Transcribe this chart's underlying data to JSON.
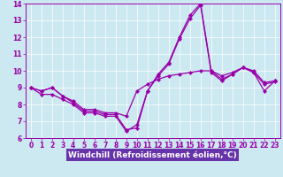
{
  "background_color": "#cce8f0",
  "plot_bg_color": "#cce8f0",
  "line_color": "#9900aa",
  "xlabel": "Windchill (Refroidissement éolien,°C)",
  "xlabel_fontsize": 6.5,
  "tick_fontsize": 5.5,
  "xlim": [
    -0.5,
    23.5
  ],
  "ylim": [
    6,
    14
  ],
  "xticks": [
    0,
    1,
    2,
    3,
    4,
    5,
    6,
    7,
    8,
    9,
    10,
    11,
    12,
    13,
    14,
    15,
    16,
    17,
    18,
    19,
    20,
    21,
    22,
    23
  ],
  "yticks": [
    6,
    7,
    8,
    9,
    10,
    11,
    12,
    13,
    14
  ],
  "xaxis_bg": "#6633aa",
  "series1_x": [
    0,
    1,
    2,
    3,
    4,
    5,
    6,
    7,
    8,
    9,
    10,
    11,
    12,
    13,
    14,
    15,
    16,
    17,
    18,
    19,
    20,
    21,
    22,
    23
  ],
  "series1_y": [
    9.0,
    8.8,
    9.0,
    8.5,
    8.1,
    7.6,
    7.6,
    7.4,
    7.4,
    6.5,
    6.6,
    8.8,
    9.8,
    10.5,
    12.0,
    13.3,
    14.0,
    10.0,
    9.5,
    9.8,
    10.2,
    10.0,
    9.3,
    9.4
  ],
  "series2_x": [
    0,
    1,
    2,
    3,
    4,
    5,
    6,
    7,
    8,
    9,
    10,
    11,
    12,
    13,
    14,
    15,
    16,
    17,
    18,
    19,
    20,
    21,
    22,
    23
  ],
  "series2_y": [
    9.0,
    8.8,
    9.0,
    8.5,
    8.2,
    7.7,
    7.7,
    7.5,
    7.5,
    7.3,
    8.8,
    9.2,
    9.5,
    9.7,
    9.8,
    9.9,
    10.0,
    10.0,
    9.7,
    9.9,
    10.2,
    9.9,
    8.8,
    9.4
  ],
  "series3_x": [
    0,
    1,
    2,
    3,
    4,
    5,
    6,
    7,
    8,
    9,
    10,
    11,
    12,
    13,
    14,
    15,
    16,
    17,
    18,
    19,
    20,
    21,
    22,
    23
  ],
  "series3_y": [
    9.0,
    8.6,
    8.6,
    8.3,
    8.0,
    7.5,
    7.5,
    7.3,
    7.3,
    6.4,
    6.8,
    8.8,
    9.7,
    10.4,
    11.9,
    13.1,
    13.9,
    9.9,
    9.4,
    9.8,
    10.2,
    9.9,
    9.2,
    9.35
  ]
}
